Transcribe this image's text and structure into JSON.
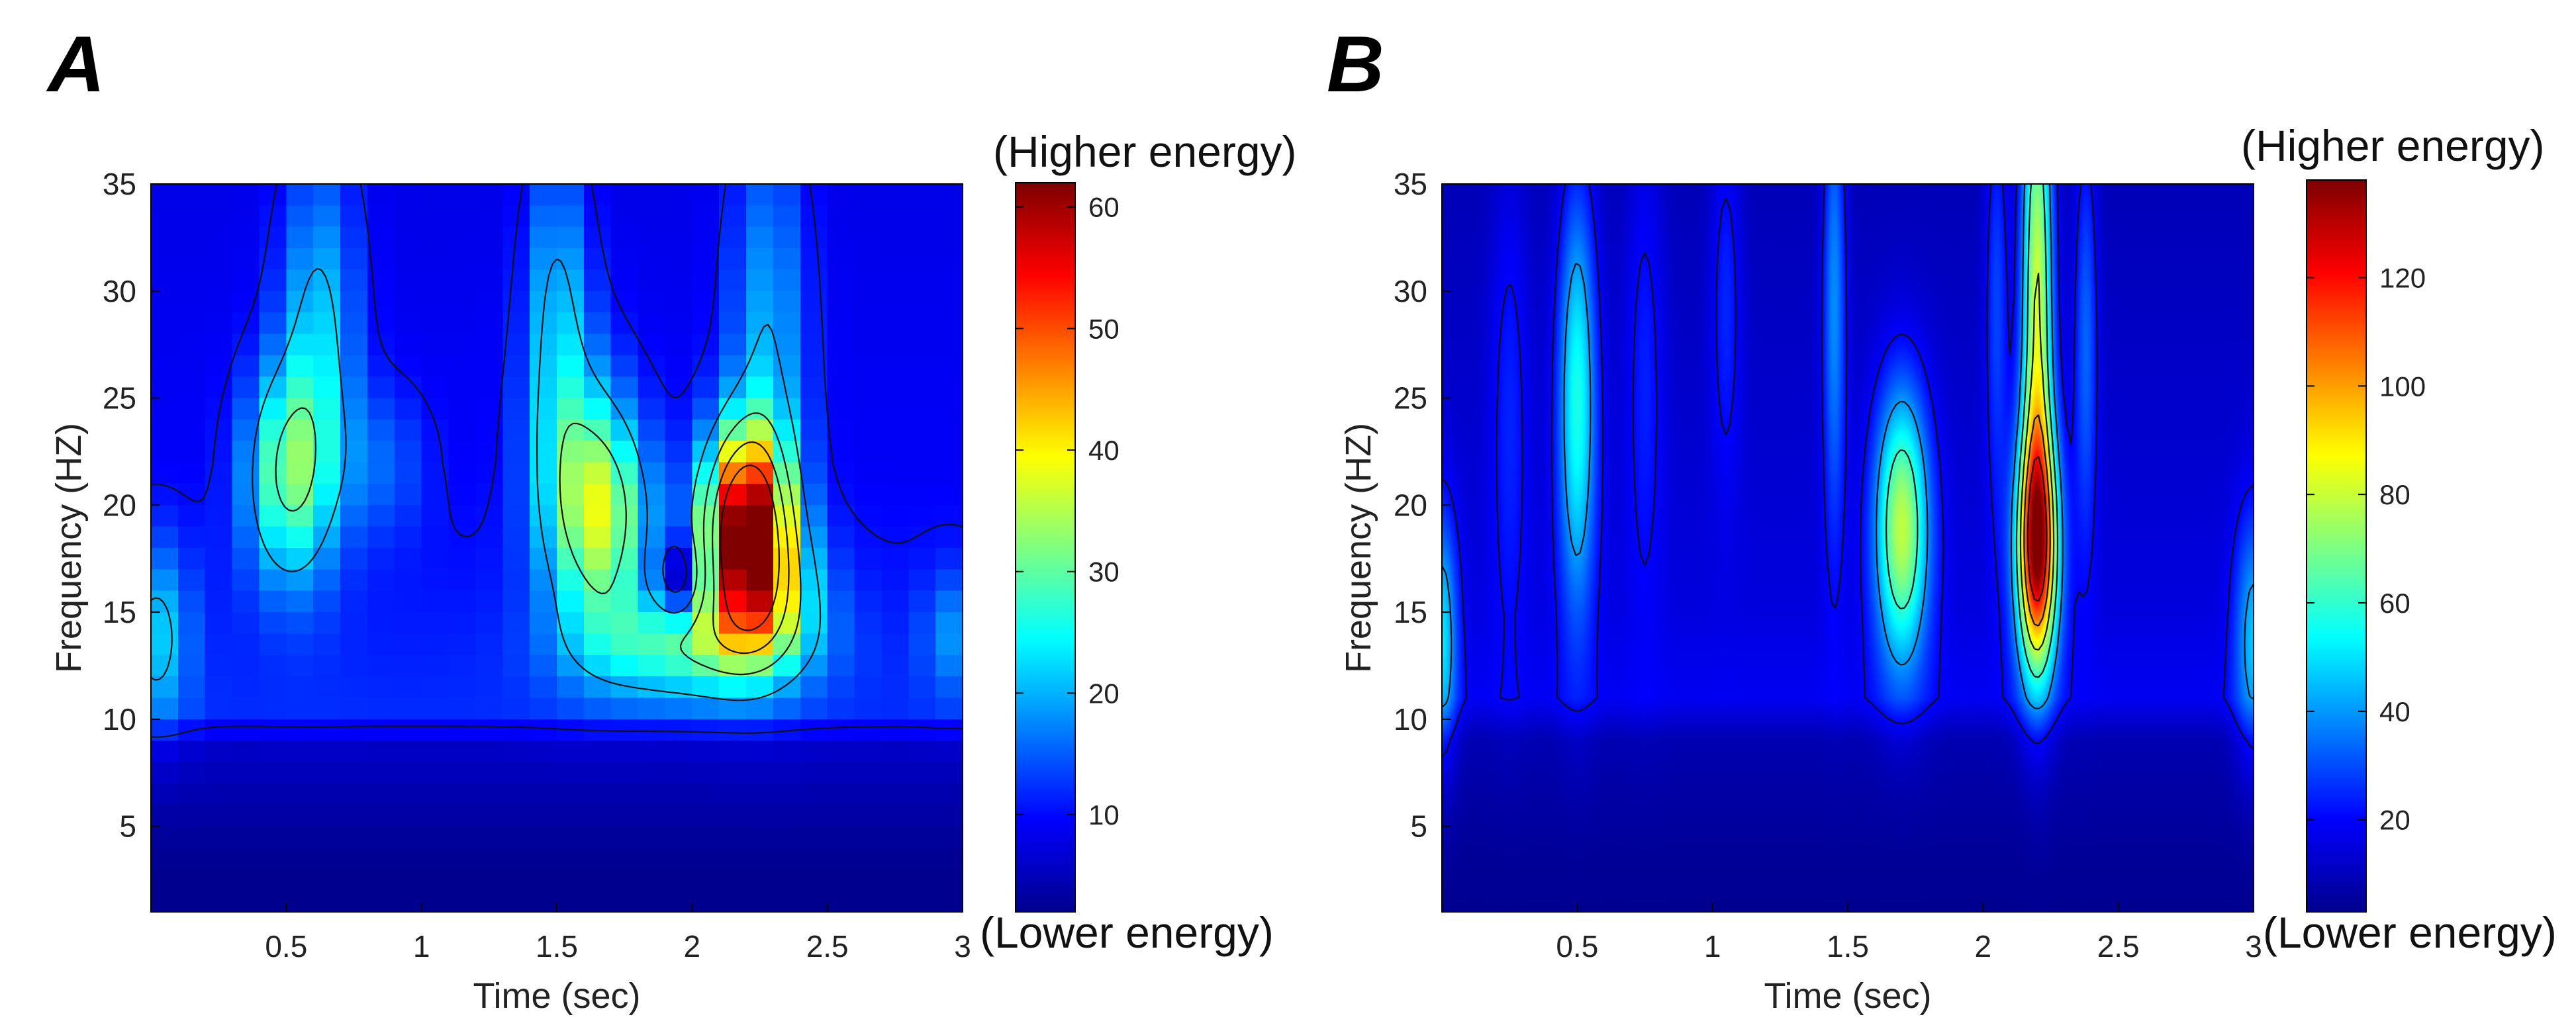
{
  "figure": {
    "colormap": [
      "#00008f",
      "#0000ff",
      "#0080ff",
      "#00ffff",
      "#80ff80",
      "#ffff00",
      "#ff8000",
      "#ff0000",
      "#800000"
    ]
  },
  "chart_data": [
    {
      "panel_label": "A",
      "type": "heatmap",
      "xlabel": "Time (sec)",
      "ylabel": "Frequency (HZ)",
      "xlim": [
        0,
        3
      ],
      "ylim": [
        1,
        35
      ],
      "xticks": [
        0.5,
        1,
        1.5,
        2,
        2.5,
        3
      ],
      "yticks": [
        5,
        10,
        15,
        20,
        25,
        30,
        35
      ],
      "grid": false,
      "contours": true,
      "pixelated": true,
      "background_by_frequency": [
        [
          1,
          1
        ],
        [
          3,
          2
        ],
        [
          5,
          3
        ],
        [
          9,
          6
        ],
        [
          10,
          12
        ],
        [
          14,
          11
        ],
        [
          22,
          9
        ],
        [
          35,
          8
        ]
      ],
      "peaks": [
        {
          "t": 2.2,
          "f": 19,
          "sigma_t": 0.11,
          "sigma_f": 3.2,
          "amp": 52
        },
        {
          "t": 2.28,
          "f": 16,
          "sigma_t": 0.14,
          "sigma_f": 2.2,
          "amp": 14
        },
        {
          "t": 1.68,
          "f": 19.5,
          "sigma_t": 0.12,
          "sigma_f": 3.5,
          "amp": 22
        },
        {
          "t": 2.0,
          "f": 13.5,
          "sigma_t": 0.28,
          "sigma_f": 1.8,
          "amp": 18
        },
        {
          "t": 1.55,
          "f": 22,
          "sigma_t": 0.12,
          "sigma_f": 4.5,
          "amp": 12
        },
        {
          "t": 1.5,
          "f": 30,
          "sigma_t": 0.08,
          "sigma_f": 5,
          "amp": 11
        },
        {
          "t": 2.28,
          "f": 28,
          "sigma_t": 0.1,
          "sigma_f": 7,
          "amp": 11
        },
        {
          "t": 0.5,
          "f": 21.5,
          "sigma_t": 0.11,
          "sigma_f": 3.5,
          "amp": 20
        },
        {
          "t": 0.62,
          "f": 28,
          "sigma_t": 0.1,
          "sigma_f": 6,
          "amp": 13
        },
        {
          "t": 0.02,
          "f": 14,
          "sigma_t": 0.09,
          "sigma_f": 3,
          "amp": 11
        },
        {
          "t": 0.85,
          "f": 22,
          "sigma_t": 0.12,
          "sigma_f": 2.5,
          "amp": 6
        },
        {
          "t": 2.95,
          "f": 14,
          "sigma_t": 0.07,
          "sigma_f": 2,
          "amp": 7
        }
      ],
      "dips": [
        {
          "t": 1.95,
          "f": 16.5,
          "sigma_t": 0.06,
          "sigma_f": 1.3,
          "amp": -13
        }
      ],
      "contour_levels": [
        10,
        20,
        30,
        40,
        50
      ],
      "colorbar": {
        "min": 2,
        "max": 62,
        "ticks": [
          10,
          20,
          30,
          40,
          50,
          60
        ],
        "top_label": "(Higher energy)",
        "bottom_label": "(Lower energy)"
      }
    },
    {
      "panel_label": "B",
      "type": "heatmap",
      "xlabel": "Time (sec)",
      "ylabel": "Frequency (HZ)",
      "xlim": [
        0,
        3
      ],
      "ylim": [
        1,
        35
      ],
      "xticks": [
        0.5,
        1,
        1.5,
        2,
        2.5,
        3
      ],
      "yticks": [
        5,
        10,
        15,
        20,
        25,
        30,
        35
      ],
      "grid": false,
      "contours": true,
      "pixelated": false,
      "background_by_frequency": [
        [
          1,
          3
        ],
        [
          5,
          5
        ],
        [
          9,
          8
        ],
        [
          11,
          18
        ],
        [
          15,
          15
        ],
        [
          35,
          9
        ]
      ],
      "peaks": [
        {
          "t": 2.2,
          "f": 18,
          "sigma_t": 0.055,
          "sigma_f": 4,
          "amp": 105
        },
        {
          "t": 2.2,
          "f": 30,
          "sigma_t": 0.04,
          "sigma_f": 9,
          "amp": 70
        },
        {
          "t": 1.7,
          "f": 19,
          "sigma_t": 0.07,
          "sigma_f": 4.5,
          "amp": 65
        },
        {
          "t": 0.5,
          "f": 25,
          "sigma_t": 0.05,
          "sigma_f": 7,
          "amp": 45
        },
        {
          "t": 1.45,
          "f": 30,
          "sigma_t": 0.03,
          "sigma_f": 8,
          "amp": 28
        },
        {
          "t": 2.38,
          "f": 28,
          "sigma_t": 0.03,
          "sigma_f": 7,
          "amp": 22
        },
        {
          "t": 2.05,
          "f": 30,
          "sigma_t": 0.03,
          "sigma_f": 7,
          "amp": 18
        },
        {
          "t": 1.05,
          "f": 30,
          "sigma_t": 0.04,
          "sigma_f": 6,
          "amp": 14
        },
        {
          "t": 0.0,
          "f": 14,
          "sigma_t": 0.04,
          "sigma_f": 4,
          "amp": 35
        },
        {
          "t": 3.0,
          "f": 14,
          "sigma_t": 0.05,
          "sigma_f": 4,
          "amp": 30
        },
        {
          "t": 0.25,
          "f": 25,
          "sigma_t": 0.05,
          "sigma_f": 8,
          "amp": 12
        },
        {
          "t": 0.75,
          "f": 27,
          "sigma_t": 0.05,
          "sigma_f": 8,
          "amp": 12
        }
      ],
      "dips": [],
      "contour_levels": [
        20,
        40,
        60,
        80,
        100,
        120
      ],
      "colorbar": {
        "min": 3,
        "max": 138,
        "ticks": [
          20,
          40,
          60,
          80,
          100,
          120
        ],
        "top_label": "(Higher energy)",
        "bottom_label": "(Lower energy)"
      }
    }
  ]
}
